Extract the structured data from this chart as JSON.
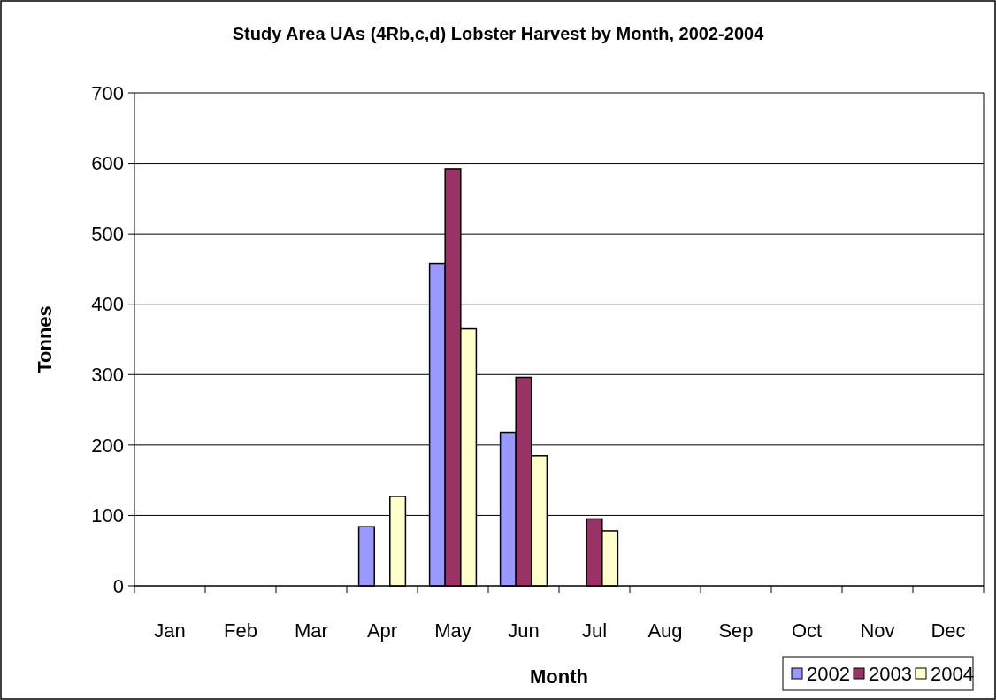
{
  "chart_data": {
    "type": "bar",
    "title": "Study Area UAs (4Rb,c,d) Lobster Harvest by Month, 2002-2004",
    "xlabel": "Month",
    "ylabel": "Tonnes",
    "categories": [
      "Jan",
      "Feb",
      "Mar",
      "Apr",
      "May",
      "Jun",
      "Jul",
      "Aug",
      "Sep",
      "Oct",
      "Nov",
      "Dec"
    ],
    "series": [
      {
        "name": "2002",
        "color": "#9999ff",
        "values": [
          0,
          0,
          0,
          84,
          458,
          218,
          0,
          0,
          0,
          0,
          0,
          0
        ]
      },
      {
        "name": "2003",
        "color": "#993366",
        "values": [
          0,
          0,
          0,
          0,
          592,
          296,
          95,
          0,
          0,
          0,
          0,
          0
        ]
      },
      {
        "name": "2004",
        "color": "#ffffcc",
        "values": [
          0,
          0,
          0,
          127,
          365,
          185,
          78,
          0,
          0,
          0,
          0,
          0
        ]
      }
    ],
    "ylim": [
      0,
      700
    ],
    "yticks": [
      0,
      100,
      200,
      300,
      400,
      500,
      600,
      700
    ],
    "grid": "y",
    "legend": "bottom right"
  }
}
